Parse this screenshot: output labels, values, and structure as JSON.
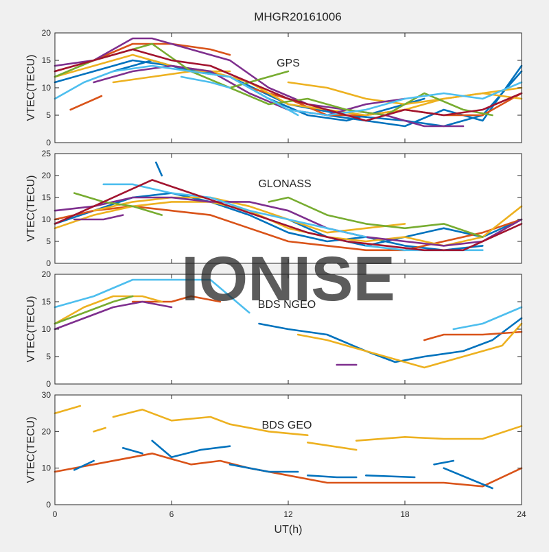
{
  "figure": {
    "title": "MHGR20161006",
    "xlabel": "UT(h)",
    "watermark": "IONISE"
  },
  "colors": {
    "background": "#f0f0f0",
    "axes_bg": "#ffffff",
    "axes_edge": "#262626",
    "watermark": "#d9d9d9",
    "palette": [
      "#0072BD",
      "#D95319",
      "#EDB120",
      "#7E2F8E",
      "#77AC30",
      "#4DBEEE",
      "#A2142F"
    ]
  },
  "chart_data": [
    {
      "type": "line",
      "label": "GPS",
      "ylabel": "VTEC(TECU)",
      "xlim": [
        0,
        24
      ],
      "ylim": [
        0,
        20
      ],
      "xticks": [
        0,
        6,
        12,
        18,
        24
      ],
      "yticks": [
        0,
        5,
        10,
        15,
        20
      ],
      "series": [
        {
          "color": "#0072BD",
          "x": [
            0,
            2,
            4,
            6,
            9,
            12,
            15,
            18,
            20,
            22,
            24
          ],
          "y": [
            11,
            13,
            15,
            14,
            12,
            7,
            5,
            4,
            3,
            5,
            13
          ]
        },
        {
          "color": "#0072BD",
          "x": [
            3,
            5,
            7,
            9,
            11,
            13,
            15,
            17,
            19
          ],
          "y": [
            13,
            15,
            13,
            12,
            8,
            5,
            4,
            6,
            8
          ]
        },
        {
          "color": "#0072BD",
          "x": [
            14,
            16,
            18,
            20,
            22,
            24
          ],
          "y": [
            5,
            4,
            3,
            6,
            4,
            14
          ]
        },
        {
          "color": "#D95319",
          "x": [
            0,
            2,
            4,
            6,
            8,
            9
          ],
          "y": [
            13,
            15,
            18,
            18,
            17,
            16
          ]
        },
        {
          "color": "#D95319",
          "x": [
            0.8,
            2.4
          ],
          "y": [
            6,
            8.5
          ]
        },
        {
          "color": "#D95319",
          "x": [
            10,
            12,
            14,
            16,
            18,
            20,
            22,
            24
          ],
          "y": [
            10,
            8,
            5,
            5,
            6,
            5,
            5,
            9
          ]
        },
        {
          "color": "#EDB120",
          "x": [
            0,
            2,
            4,
            6,
            8,
            10,
            12,
            14,
            16,
            18,
            20,
            22,
            24
          ],
          "y": [
            12,
            14,
            16,
            14,
            13,
            11,
            7,
            6,
            5,
            6,
            8,
            9,
            10
          ]
        },
        {
          "color": "#EDB120",
          "x": [
            3,
            5,
            7,
            9
          ],
          "y": [
            11,
            12,
            13,
            13
          ]
        },
        {
          "color": "#EDB120",
          "x": [
            12,
            14,
            16,
            18,
            20,
            22,
            24
          ],
          "y": [
            11,
            10,
            8,
            7,
            8,
            9,
            8
          ]
        },
        {
          "color": "#7E2F8E",
          "x": [
            0,
            2,
            4,
            5,
            7,
            9,
            11,
            13,
            15,
            17,
            19,
            21
          ],
          "y": [
            14,
            15,
            19,
            19,
            17,
            15,
            10,
            7,
            6,
            5,
            3,
            3
          ]
        },
        {
          "color": "#7E2F8E",
          "x": [
            2,
            4,
            6,
            8,
            10,
            12,
            14,
            16,
            18
          ],
          "y": [
            11,
            13,
            14,
            13,
            9,
            6,
            5,
            7,
            8
          ]
        },
        {
          "color": "#77AC30",
          "x": [
            0,
            2,
            4,
            5,
            7,
            9,
            11,
            13,
            15,
            17,
            19,
            21,
            22.5
          ],
          "y": [
            12,
            15,
            17,
            18,
            13,
            10,
            7,
            8,
            6,
            5,
            9,
            6,
            5
          ]
        },
        {
          "color": "#77AC30",
          "x": [
            9,
            11,
            12
          ],
          "y": [
            10,
            12,
            13
          ]
        },
        {
          "color": "#4DBEEE",
          "x": [
            0,
            1.5,
            3,
            5,
            7,
            9,
            11,
            12.5
          ],
          "y": [
            8,
            11,
            13,
            14,
            13,
            12,
            8,
            5
          ]
        },
        {
          "color": "#4DBEEE",
          "x": [
            6.5,
            8,
            9
          ],
          "y": [
            12,
            11,
            10
          ]
        },
        {
          "color": "#4DBEEE",
          "x": [
            12,
            14,
            16,
            18,
            20,
            22,
            24
          ],
          "y": [
            6,
            5,
            6,
            8,
            9,
            8,
            11
          ]
        },
        {
          "color": "#A2142F",
          "x": [
            0,
            2,
            4,
            6,
            8,
            10,
            12,
            14,
            16,
            18,
            20,
            22,
            24
          ],
          "y": [
            13,
            15,
            17,
            15,
            14,
            11,
            8,
            6,
            4,
            6,
            5,
            6,
            9
          ]
        }
      ]
    },
    {
      "type": "line",
      "label": "GLONASS",
      "ylabel": "VTEC(TECU)",
      "xlim": [
        0,
        24
      ],
      "ylim": [
        0,
        25
      ],
      "xticks": [
        0,
        6,
        12,
        18,
        24
      ],
      "yticks": [
        0,
        5,
        10,
        15,
        20,
        25
      ],
      "series": [
        {
          "color": "#0072BD",
          "x": [
            5.2,
            5.5
          ],
          "y": [
            23,
            20
          ]
        },
        {
          "color": "#0072BD",
          "x": [
            0,
            2,
            4,
            6,
            8,
            10,
            12,
            14,
            16,
            18,
            20,
            22
          ],
          "y": [
            9,
            12,
            15,
            16,
            14,
            11,
            7,
            5,
            6,
            4,
            3,
            4
          ]
        },
        {
          "color": "#0072BD",
          "x": [
            12,
            14,
            16,
            18,
            20,
            22,
            24
          ],
          "y": [
            10,
            6,
            4,
            6,
            8,
            6,
            10
          ]
        },
        {
          "color": "#D95319",
          "x": [
            0,
            2,
            4,
            6,
            8,
            10,
            12,
            14,
            16,
            18,
            20,
            22,
            24
          ],
          "y": [
            10,
            12,
            13,
            12,
            11,
            8,
            5,
            4,
            3,
            3,
            5,
            7,
            10
          ]
        },
        {
          "color": "#EDB120",
          "x": [
            0,
            2,
            4,
            6,
            8,
            10,
            12,
            14,
            16,
            18,
            20,
            22,
            24
          ],
          "y": [
            8,
            11,
            13,
            14,
            14,
            12,
            8,
            6,
            5,
            6,
            4,
            6,
            13
          ]
        },
        {
          "color": "#EDB120",
          "x": [
            2,
            4,
            6,
            8,
            10,
            12,
            14,
            16,
            18
          ],
          "y": [
            12,
            14,
            15,
            15,
            13,
            10,
            7,
            8,
            9
          ]
        },
        {
          "color": "#7E2F8E",
          "x": [
            0,
            2,
            4,
            6,
            8,
            10,
            12,
            14,
            16,
            18,
            20,
            22,
            24
          ],
          "y": [
            12,
            13,
            15,
            15,
            14,
            14,
            12,
            8,
            6,
            5,
            4,
            5,
            10
          ]
        },
        {
          "color": "#7E2F8E",
          "x": [
            1,
            2.5,
            3.5
          ],
          "y": [
            10,
            10,
            11
          ]
        },
        {
          "color": "#77AC30",
          "x": [
            1,
            2.5,
            4,
            5.5
          ],
          "y": [
            16,
            14,
            13,
            11
          ]
        },
        {
          "color": "#77AC30",
          "x": [
            11,
            12,
            14,
            16,
            18,
            20,
            22
          ],
          "y": [
            14,
            15,
            11,
            9,
            8,
            9,
            6
          ]
        },
        {
          "color": "#4DBEEE",
          "x": [
            2.5,
            4,
            6,
            8,
            10,
            12,
            14,
            16
          ],
          "y": [
            18,
            18,
            16,
            15,
            12,
            10,
            8,
            6
          ]
        },
        {
          "color": "#4DBEEE",
          "x": [
            16,
            18,
            20,
            22
          ],
          "y": [
            4,
            3,
            3,
            3
          ]
        },
        {
          "color": "#A2142F",
          "x": [
            0,
            2,
            4,
            5,
            7,
            9,
            11,
            13,
            15,
            17,
            19,
            21,
            24
          ],
          "y": [
            9,
            13,
            17,
            19,
            16,
            13,
            10,
            7,
            5,
            4,
            3,
            3,
            9
          ]
        }
      ]
    },
    {
      "type": "line",
      "label": "BDS NGEO",
      "ylabel": "VTEC(TECU)",
      "xlim": [
        0,
        24
      ],
      "ylim": [
        0,
        20
      ],
      "xticks": [
        0,
        6,
        12,
        18,
        24
      ],
      "yticks": [
        0,
        5,
        10,
        15,
        20
      ],
      "series": [
        {
          "color": "#4DBEEE",
          "x": [
            0,
            2,
            4,
            6,
            8,
            9,
            10
          ],
          "y": [
            14,
            16,
            19,
            19,
            19,
            16,
            13
          ]
        },
        {
          "color": "#4DBEEE",
          "x": [
            20.5,
            22,
            24
          ],
          "y": [
            10,
            11,
            14
          ]
        },
        {
          "color": "#0072BD",
          "x": [
            10.5,
            12,
            14,
            16,
            17.5,
            19,
            21,
            22.5,
            24
          ],
          "y": [
            11,
            10,
            9,
            6,
            4,
            5,
            6,
            8,
            12
          ]
        },
        {
          "color": "#D95319",
          "x": [
            4,
            6,
            7,
            8.5
          ],
          "y": [
            15,
            15,
            16,
            15
          ]
        },
        {
          "color": "#D95319",
          "x": [
            19,
            20,
            22,
            24
          ],
          "y": [
            8,
            9,
            9,
            9.5
          ]
        },
        {
          "color": "#EDB120",
          "x": [
            0,
            1.5,
            3,
            4.5,
            5.5
          ],
          "y": [
            11,
            14,
            16,
            16,
            15
          ]
        },
        {
          "color": "#EDB120",
          "x": [
            12.5,
            14,
            16,
            18,
            19,
            21,
            23,
            24
          ],
          "y": [
            9,
            8,
            6,
            4,
            3,
            5,
            7,
            11
          ]
        },
        {
          "color": "#7E2F8E",
          "x": [
            0,
            1.5,
            3,
            4.5,
            6
          ],
          "y": [
            10,
            12,
            14,
            15,
            14
          ]
        },
        {
          "color": "#7E2F8E",
          "x": [
            14.5,
            15.5
          ],
          "y": [
            3.5,
            3.5
          ]
        },
        {
          "color": "#77AC30",
          "x": [
            0,
            1.5,
            3,
            4
          ],
          "y": [
            11,
            13,
            15,
            16
          ]
        }
      ]
    },
    {
      "type": "line",
      "label": "BDS GEO",
      "ylabel": "VTEC(TECU)",
      "xlim": [
        0,
        24
      ],
      "ylim": [
        0,
        30
      ],
      "xticks": [
        0,
        6,
        12,
        18,
        24
      ],
      "yticks": [
        0,
        10,
        20,
        30
      ],
      "series": [
        {
          "color": "#EDB120",
          "x": [
            0,
            1.3
          ],
          "y": [
            25,
            27
          ]
        },
        {
          "color": "#EDB120",
          "x": [
            2,
            2.6
          ],
          "y": [
            20,
            21
          ]
        },
        {
          "color": "#EDB120",
          "x": [
            3,
            4.5,
            6,
            8,
            9
          ],
          "y": [
            24,
            26,
            23,
            24,
            22
          ]
        },
        {
          "color": "#EDB120",
          "x": [
            9,
            11,
            13
          ],
          "y": [
            22,
            20,
            19
          ]
        },
        {
          "color": "#EDB120",
          "x": [
            13,
            15.5
          ],
          "y": [
            17,
            15
          ]
        },
        {
          "color": "#EDB120",
          "x": [
            15.5,
            18,
            20,
            22,
            24
          ],
          "y": [
            17.5,
            18.5,
            18,
            18,
            21.5
          ]
        },
        {
          "color": "#D95319",
          "x": [
            0,
            2,
            4,
            5,
            7,
            8.5,
            10,
            12,
            14,
            16,
            18,
            20,
            22,
            24
          ],
          "y": [
            9,
            11,
            13,
            14,
            11,
            12,
            10,
            8,
            6,
            6,
            6,
            6,
            5,
            10
          ]
        },
        {
          "color": "#0072BD",
          "x": [
            1,
            2
          ],
          "y": [
            9.5,
            12
          ]
        },
        {
          "color": "#0072BD",
          "x": [
            3.5,
            4.5
          ],
          "y": [
            15.5,
            14
          ]
        },
        {
          "color": "#0072BD",
          "x": [
            5,
            6,
            7.5,
            9
          ],
          "y": [
            17.5,
            13,
            15,
            16
          ]
        },
        {
          "color": "#0072BD",
          "x": [
            9,
            11,
            12.5
          ],
          "y": [
            11,
            9,
            9
          ]
        },
        {
          "color": "#0072BD",
          "x": [
            13,
            14.5,
            15.5
          ],
          "y": [
            8,
            7.5,
            7.5
          ]
        },
        {
          "color": "#0072BD",
          "x": [
            16,
            18.5
          ],
          "y": [
            8,
            7.5
          ]
        },
        {
          "color": "#0072BD",
          "x": [
            19.5,
            20.5
          ],
          "y": [
            11,
            12
          ]
        },
        {
          "color": "#0072BD",
          "x": [
            20,
            22.5
          ],
          "y": [
            10,
            4.5
          ]
        }
      ]
    }
  ]
}
